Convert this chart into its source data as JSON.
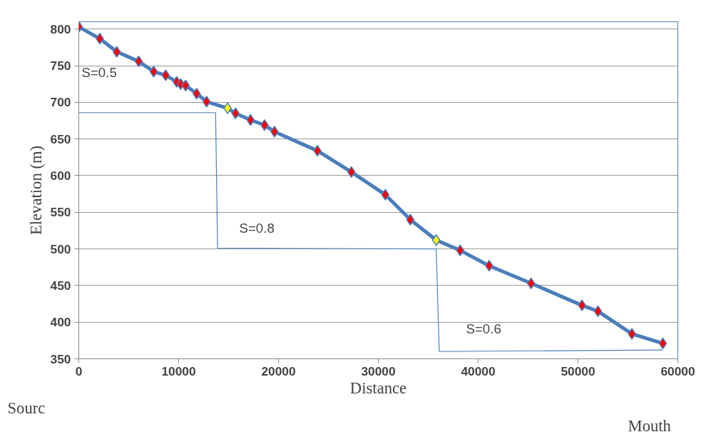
{
  "chart_data": {
    "type": "line",
    "xlabel": "Distance",
    "ylabel": "Elevation (m)",
    "xlim": [
      0,
      60000
    ],
    "ylim": [
      350,
      810
    ],
    "xticks": [
      0,
      10000,
      20000,
      30000,
      40000,
      50000,
      60000
    ],
    "yticks": [
      350,
      400,
      450,
      500,
      550,
      600,
      650,
      700,
      750,
      800
    ],
    "grid": "y",
    "marker": "diamond",
    "series": [
      {
        "color": "#4a7ebb",
        "x": [
          0,
          2100,
          3800,
          6000,
          7500,
          8700,
          9800,
          10200,
          10700,
          11800,
          12800,
          14900,
          15700,
          17200,
          18600,
          19600,
          23900,
          27300,
          30700,
          33200,
          35800,
          38200,
          41100,
          45300,
          50400,
          52000,
          55400,
          58500
        ],
        "values": [
          803,
          787,
          769,
          756,
          742,
          737,
          728,
          725,
          723,
          712,
          701,
          692,
          685,
          676,
          669,
          660,
          634,
          605,
          574,
          540,
          512,
          498,
          477,
          453,
          423,
          415,
          384,
          371
        ],
        "colors": [
          "#ff0000",
          "#ff0000",
          "#ff0000",
          "#ff0000",
          "#ff0000",
          "#ff0000",
          "#ff0000",
          "#ff0000",
          "#ff0000",
          "#ff0000",
          "#ff0000",
          "#ffff00",
          "#ff0000",
          "#ff0000",
          "#ff0000",
          "#ff0000",
          "#ff0000",
          "#ff0000",
          "#ff0000",
          "#ff0000",
          "#ffff00",
          "#ff0000",
          "#ff0000",
          "#ff0000",
          "#ff0000",
          "#ff0000",
          "#ff0000",
          "#ff0000"
        ]
      },
      {
        "type": "line",
        "marker": "none",
        "color": "#4a7ebb",
        "x": [
          0,
          13700,
          13900,
          35800,
          36100,
          58500
        ],
        "values": [
          686,
          686,
          501,
          500,
          360,
          362
        ]
      }
    ],
    "annotations": [
      "S=0.5",
      "S=0.8",
      "S=0.6",
      "Sourc",
      "Mouth"
    ]
  }
}
